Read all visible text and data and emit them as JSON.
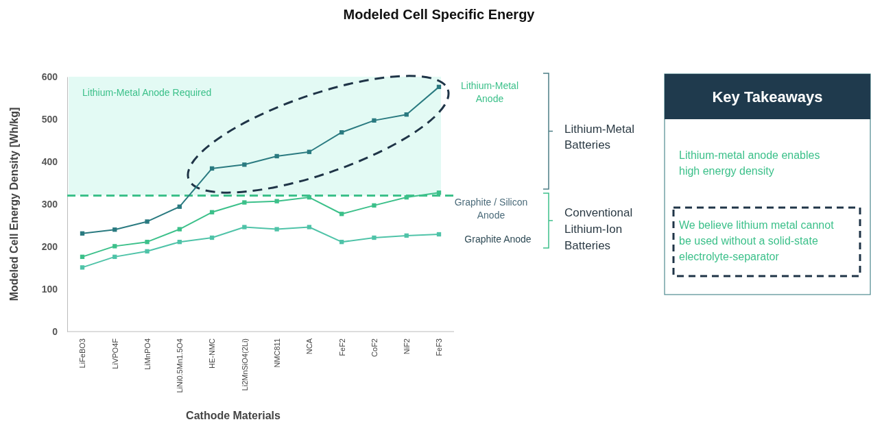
{
  "chart_data": {
    "type": "line",
    "title": "Modeled Cell Specific Energy",
    "xlabel": "Cathode Materials",
    "ylabel": "Modeled Cell Energy Density [Wh/kg]",
    "categories": [
      "LiFeBO3",
      "LiVPO4F",
      "LiMnPO4",
      "LiNi0.5Mn1.5O4",
      "HE-NMC",
      "Li2MnSiO4(2Li)",
      "NMC811",
      "NCA",
      "FeF2",
      "CoF2",
      "NiF2",
      "FeF3"
    ],
    "series": [
      {
        "name": "Lithium-Metal Anode",
        "color": "#2a7a80",
        "values": [
          231,
          240,
          259,
          294,
          384,
          393,
          413,
          423,
          469,
          497,
          511,
          576
        ]
      },
      {
        "name": "Graphite / Silicon Anode",
        "color": "#3cc08a",
        "values": [
          176,
          201,
          211,
          241,
          281,
          304,
          307,
          316,
          277,
          297,
          316,
          327
        ]
      },
      {
        "name": "Graphite Anode",
        "color": "#4fc3a8",
        "values": [
          151,
          176,
          189,
          211,
          221,
          246,
          241,
          246,
          211,
          221,
          226,
          229
        ]
      }
    ],
    "ylim": [
      0,
      600
    ],
    "yticks": [
      0,
      100,
      200,
      300,
      400,
      500,
      600
    ],
    "grid": false,
    "marker": "square",
    "line_style": "solid",
    "ref_lines": [
      {
        "axis": "y",
        "value": 320,
        "color": "#3cc08a",
        "line_style": "dashed"
      }
    ],
    "bands": [
      {
        "axis": "y",
        "from": 320,
        "to": 600,
        "label": "Lithium-Metal Anode Required",
        "color": "#e3faf4"
      }
    ],
    "annotations": [
      "Lithium-Metal Batteries",
      "Conventional Lithium-Ion Batteries",
      "Key Takeaways",
      "Lithium-metal anode enables high energy density",
      "We believe lithium metal cannot be used without a solid-state electrolyte-separator"
    ]
  }
}
